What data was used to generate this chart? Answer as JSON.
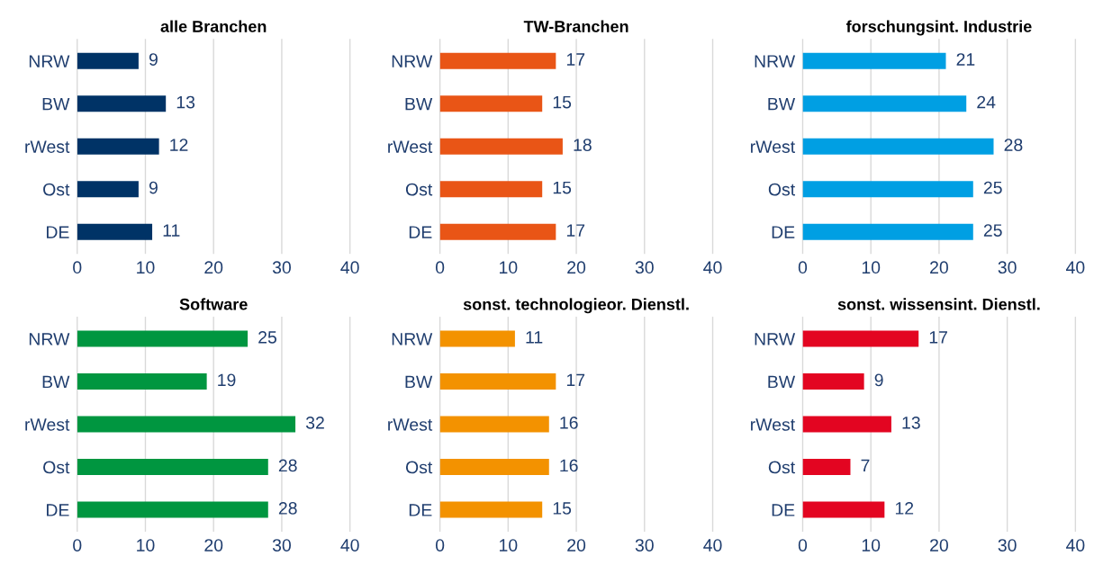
{
  "chart_data": [
    {
      "type": "bar",
      "orientation": "horizontal",
      "title": "alle Branchen",
      "categories": [
        "NRW",
        "BW",
        "rWest",
        "Ost",
        "DE"
      ],
      "values": [
        9,
        13,
        12,
        9,
        11
      ],
      "color": "#003366",
      "xlim": [
        0,
        40
      ],
      "xticks": [
        0,
        10,
        20,
        30,
        40
      ],
      "grid": "x",
      "data_labels": true
    },
    {
      "type": "bar",
      "orientation": "horizontal",
      "title": "TW-Branchen",
      "categories": [
        "NRW",
        "BW",
        "rWest",
        "Ost",
        "DE"
      ],
      "values": [
        17,
        15,
        18,
        15,
        17
      ],
      "color": "#e95516",
      "xlim": [
        0,
        40
      ],
      "xticks": [
        0,
        10,
        20,
        30,
        40
      ],
      "grid": "x",
      "data_labels": true
    },
    {
      "type": "bar",
      "orientation": "horizontal",
      "title": "forschungsint. Industrie",
      "categories": [
        "NRW",
        "BW",
        "rWest",
        "Ost",
        "DE"
      ],
      "values": [
        21,
        24,
        28,
        25,
        25
      ],
      "color": "#009fe3",
      "xlim": [
        0,
        40
      ],
      "xticks": [
        0,
        10,
        20,
        30,
        40
      ],
      "grid": "x",
      "data_labels": true
    },
    {
      "type": "bar",
      "orientation": "horizontal",
      "title": "Software",
      "categories": [
        "NRW",
        "BW",
        "rWest",
        "Ost",
        "DE"
      ],
      "values": [
        25,
        19,
        32,
        28,
        28
      ],
      "color": "#009640",
      "xlim": [
        0,
        40
      ],
      "xticks": [
        0,
        10,
        20,
        30,
        40
      ],
      "grid": "x",
      "data_labels": true
    },
    {
      "type": "bar",
      "orientation": "horizontal",
      "title": "sonst. technologieor. Dienstl.",
      "categories": [
        "NRW",
        "BW",
        "rWest",
        "Ost",
        "DE"
      ],
      "values": [
        11,
        17,
        16,
        16,
        15
      ],
      "color": "#f39200",
      "xlim": [
        0,
        40
      ],
      "xticks": [
        0,
        10,
        20,
        30,
        40
      ],
      "grid": "x",
      "data_labels": true
    },
    {
      "type": "bar",
      "orientation": "horizontal",
      "title": "sonst. wissensint. Dienstl.",
      "categories": [
        "NRW",
        "BW",
        "rWest",
        "Ost",
        "DE"
      ],
      "values": [
        17,
        9,
        13,
        7,
        12
      ],
      "color": "#e30521",
      "xlim": [
        0,
        40
      ],
      "xticks": [
        0,
        10,
        20,
        30,
        40
      ],
      "grid": "x",
      "data_labels": true
    }
  ]
}
